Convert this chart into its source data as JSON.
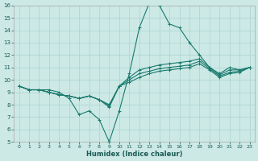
{
  "xlabel": "Humidex (Indice chaleur)",
  "bg_color": "#cce9e5",
  "line_color": "#1a7a6e",
  "grid_color": "#aad4d0",
  "xlim": [
    -0.5,
    23.5
  ],
  "ylim": [
    5,
    16
  ],
  "xticks": [
    0,
    1,
    2,
    3,
    4,
    5,
    6,
    7,
    8,
    9,
    10,
    11,
    12,
    13,
    14,
    15,
    16,
    17,
    18,
    19,
    20,
    21,
    22,
    23
  ],
  "yticks": [
    5,
    6,
    7,
    8,
    9,
    10,
    11,
    12,
    13,
    14,
    15,
    16
  ],
  "lines": [
    {
      "x": [
        0,
        1,
        2,
        3,
        4,
        5,
        6,
        7,
        8,
        9,
        10,
        11,
        12,
        13,
        14,
        15,
        16,
        17,
        18,
        19,
        20,
        21,
        22,
        23
      ],
      "y": [
        9.5,
        9.2,
        9.2,
        9.2,
        9.0,
        8.5,
        7.2,
        7.5,
        6.8,
        5.0,
        7.5,
        10.5,
        14.2,
        16.2,
        16.0,
        14.5,
        14.2,
        13.0,
        12.0,
        11.0,
        10.5,
        11.0,
        10.8,
        11.0
      ]
    },
    {
      "x": [
        0,
        1,
        2,
        3,
        4,
        5,
        6,
        7,
        8,
        9,
        10,
        11,
        12,
        13,
        14,
        15,
        16,
        17,
        18,
        19,
        20,
        21,
        22,
        23
      ],
      "y": [
        9.5,
        9.2,
        9.2,
        9.0,
        8.8,
        8.7,
        8.5,
        8.7,
        8.4,
        7.8,
        9.5,
        10.2,
        10.8,
        11.0,
        11.2,
        11.3,
        11.4,
        11.5,
        11.7,
        11.0,
        10.4,
        10.8,
        10.8,
        11.0
      ]
    },
    {
      "x": [
        0,
        1,
        2,
        3,
        4,
        5,
        6,
        7,
        8,
        9,
        10,
        11,
        12,
        13,
        14,
        15,
        16,
        17,
        18,
        19,
        20,
        21,
        22,
        23
      ],
      "y": [
        9.5,
        9.2,
        9.2,
        9.0,
        8.8,
        8.7,
        8.5,
        8.7,
        8.4,
        7.9,
        9.5,
        10.0,
        10.5,
        10.7,
        10.9,
        11.0,
        11.1,
        11.2,
        11.5,
        10.9,
        10.3,
        10.6,
        10.7,
        11.0
      ]
    },
    {
      "x": [
        0,
        1,
        2,
        3,
        4,
        5,
        6,
        7,
        8,
        9,
        10,
        11,
        12,
        13,
        14,
        15,
        16,
        17,
        18,
        19,
        20,
        21,
        22,
        23
      ],
      "y": [
        9.5,
        9.2,
        9.2,
        9.0,
        8.8,
        8.7,
        8.5,
        8.7,
        8.4,
        8.0,
        9.5,
        9.8,
        10.2,
        10.5,
        10.7,
        10.8,
        10.9,
        11.0,
        11.3,
        10.8,
        10.2,
        10.5,
        10.6,
        11.0
      ]
    }
  ],
  "marker": "+",
  "markersize": 2.5,
  "linewidth": 0.8,
  "xlabel_fontsize": 6,
  "tick_fontsize": 4.5
}
